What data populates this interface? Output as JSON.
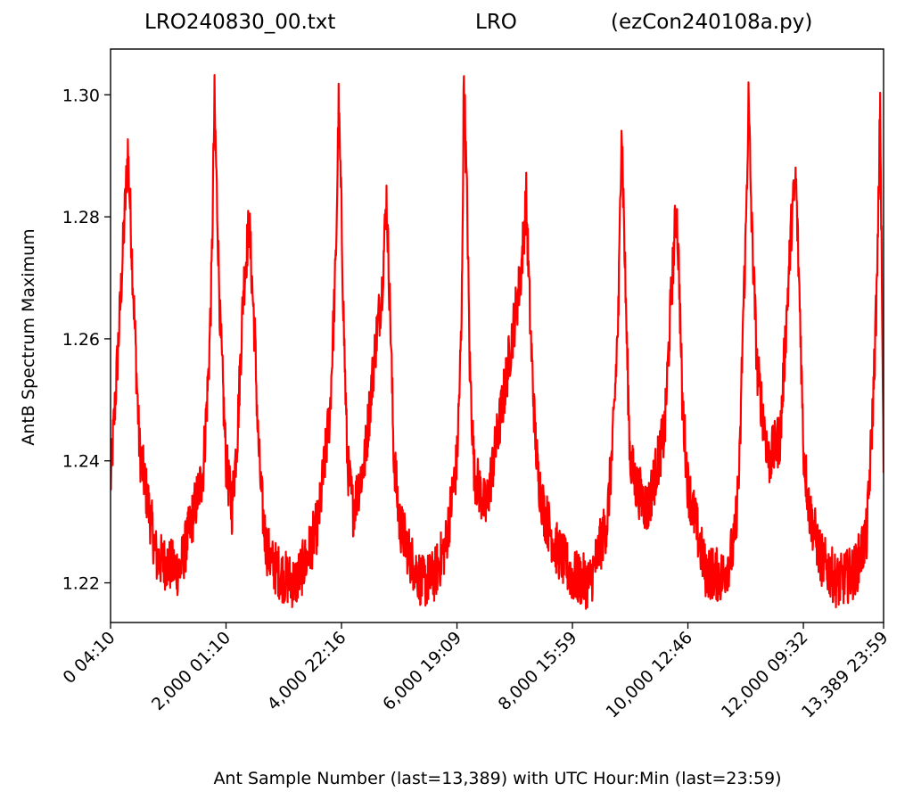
{
  "title": {
    "left": "LRO240830_00.txt",
    "center": "LRO",
    "right": "(ezCon240108a.py)"
  },
  "chart_data": {
    "type": "line",
    "title": "LRO240830_00.txt          LRO          (ezCon240108a.py)",
    "xlabel": "Ant Sample Number (last=13,389) with UTC Hour:Min (last=23:59)",
    "ylabel": "AntB Spectrum Maximum",
    "xlim": [
      0,
      13389
    ],
    "ylim": [
      1.2135,
      1.3075
    ],
    "grid": false,
    "yticks": [
      1.22,
      1.24,
      1.26,
      1.28,
      1.3
    ],
    "ytick_labels": [
      "1.22",
      "1.24",
      "1.26",
      "1.28",
      "1.30"
    ],
    "xticks": [
      0,
      2000,
      4000,
      6000,
      8000,
      10000,
      12000,
      13389
    ],
    "xtick_labels": [
      "0  04:10",
      "2,000  01:10",
      "4,000  22:16",
      "6,000  19:09",
      "8,000  15:59",
      "10,000  12:46",
      "12,000  09:32",
      "13,389  23:59"
    ],
    "series": [
      {
        "color": "#ff0000",
        "x": [
          0,
          150,
          300,
          500,
          800,
          1200,
          1600,
          1700,
          1750,
          1800,
          1900,
          2000,
          2100,
          2200,
          2300,
          2400,
          2500,
          2550,
          2600,
          2650,
          2700,
          2800,
          3000,
          3200,
          3400,
          3600,
          3800,
          3900,
          3950,
          4000,
          4050,
          4100,
          4200,
          4400,
          4600,
          4700,
          4780,
          4850,
          4900,
          5000,
          5200,
          5400,
          5600,
          5800,
          6000,
          6080,
          6120,
          6180,
          6220,
          6300,
          6500,
          6800,
          7100,
          7200,
          7270,
          7350,
          7400,
          7500,
          7700,
          8000,
          8300,
          8600,
          8700,
          8800,
          8850,
          8890,
          8950,
          9000,
          9100,
          9300,
          9600,
          9700,
          9800,
          9850,
          9900,
          10000,
          10300,
          10600,
          10800,
          10900,
          10950,
          11000,
          11050,
          11100,
          11200,
          11400,
          11600,
          11700,
          11800,
          11870,
          11950,
          12000,
          12100,
          12300,
          12600,
          12900,
          13100,
          13200,
          13280,
          13330,
          13389
        ],
        "y": [
          1.236,
          1.262,
          1.291,
          1.242,
          1.224,
          1.222,
          1.238,
          1.255,
          1.27,
          1.299,
          1.262,
          1.24,
          1.232,
          1.245,
          1.268,
          1.279,
          1.26,
          1.245,
          1.236,
          1.23,
          1.226,
          1.223,
          1.221,
          1.22,
          1.224,
          1.23,
          1.248,
          1.272,
          1.298,
          1.28,
          1.258,
          1.24,
          1.232,
          1.24,
          1.26,
          1.268,
          1.283,
          1.262,
          1.242,
          1.23,
          1.224,
          1.22,
          1.221,
          1.226,
          1.24,
          1.262,
          1.303,
          1.28,
          1.256,
          1.238,
          1.232,
          1.25,
          1.27,
          1.283,
          1.262,
          1.245,
          1.238,
          1.232,
          1.226,
          1.221,
          1.22,
          1.23,
          1.243,
          1.265,
          1.297,
          1.28,
          1.256,
          1.24,
          1.236,
          1.232,
          1.245,
          1.265,
          1.282,
          1.27,
          1.25,
          1.236,
          1.222,
          1.221,
          1.226,
          1.24,
          1.262,
          1.276,
          1.299,
          1.28,
          1.255,
          1.24,
          1.244,
          1.262,
          1.28,
          1.286,
          1.262,
          1.242,
          1.232,
          1.224,
          1.22,
          1.222,
          1.228,
          1.248,
          1.27,
          1.299,
          1.238
        ]
      }
    ]
  }
}
